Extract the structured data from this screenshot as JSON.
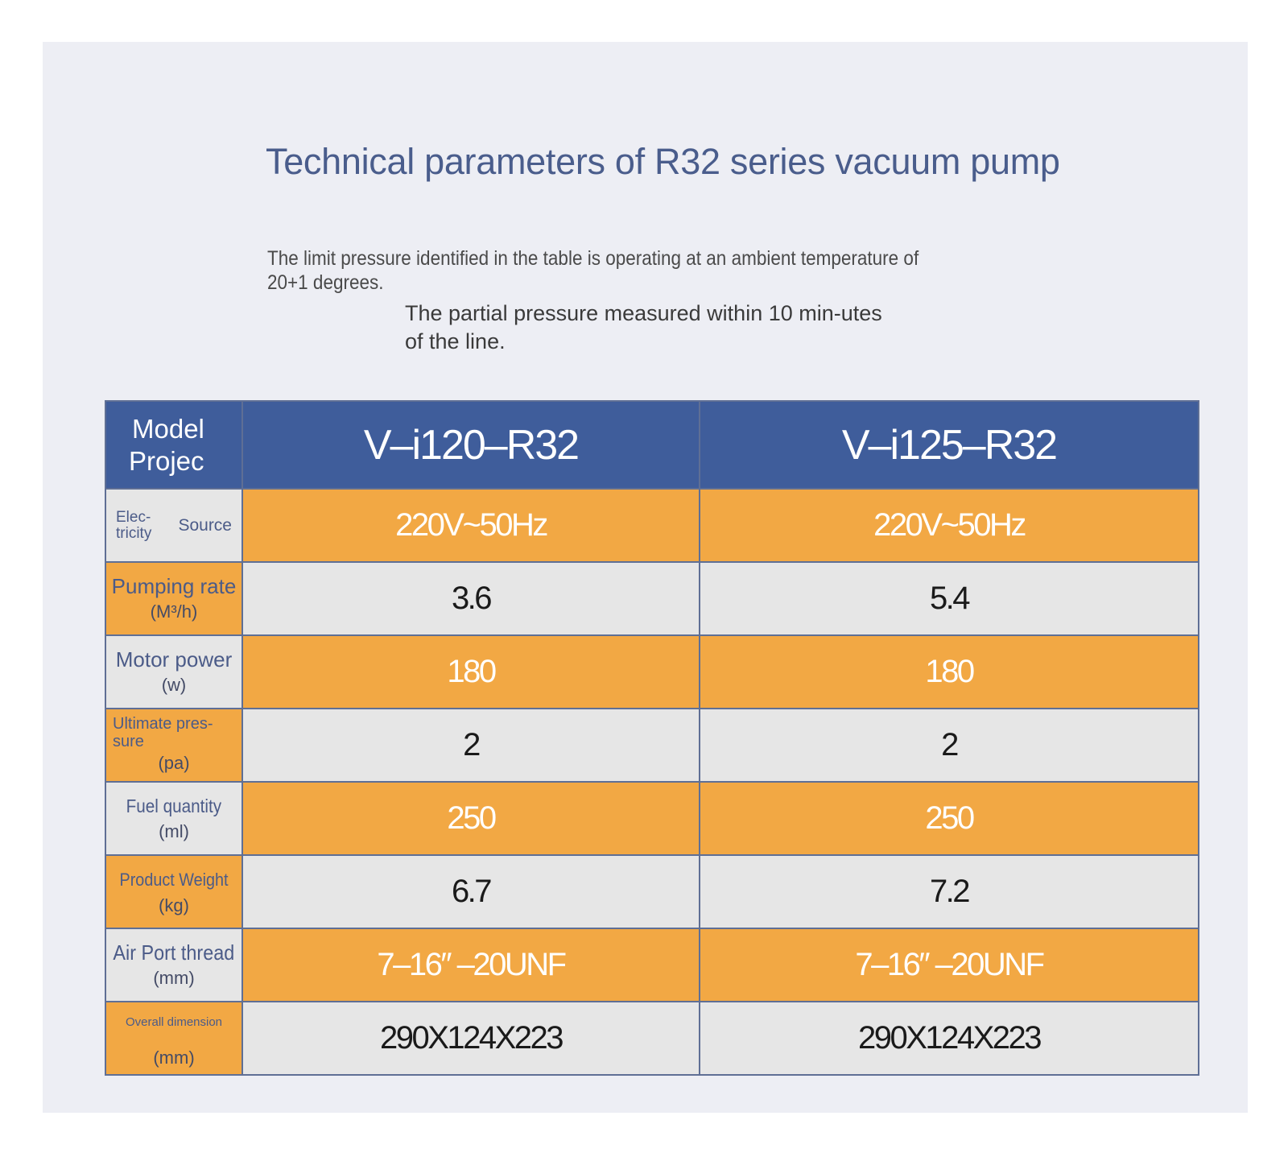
{
  "title": "Technical parameters of R32 series vacuum pump",
  "note_limit_pressure": "The limit pressure identified in the table is operating at an ambient temperature of 20+1 degrees.",
  "note_partial_pressure": "The partial pressure measured within 10 min-utes of the line.",
  "table": {
    "header_label_line1": "Model",
    "header_label_line2": "Projec",
    "models": [
      "V–i120–R32",
      "V–i125–R32"
    ],
    "rows": [
      {
        "label_a": "Elec-tricity",
        "label_b": "Source",
        "unit": "",
        "values": [
          "220V~50Hz",
          "220V~50Hz"
        ],
        "style": "orange-values"
      },
      {
        "label": "Pumping rate",
        "unit": "(M³/h)",
        "values": [
          "3.6",
          "5.4"
        ],
        "style": "orange-label"
      },
      {
        "label": "Motor power",
        "unit": "(w)",
        "values": [
          "180",
          "180"
        ],
        "style": "orange-values"
      },
      {
        "label": "Ultimate pres-sure",
        "unit": "(pa)",
        "values": [
          "2",
          "2"
        ],
        "style": "orange-label"
      },
      {
        "label": "Fuel quantity",
        "unit": "(ml)",
        "values": [
          "250",
          "250"
        ],
        "style": "orange-values"
      },
      {
        "label": "Product Weight",
        "unit": "(kg)",
        "values": [
          "6.7",
          "7.2"
        ],
        "style": "orange-label"
      },
      {
        "label": "Air Port thread",
        "unit": "(mm)",
        "values": [
          "7–16″ –20UNF",
          "7–16″ –20UNF"
        ],
        "style": "orange-values"
      },
      {
        "label": "Overall dimension",
        "unit": "(mm)",
        "values": [
          "290X124X223",
          "290X124X223"
        ],
        "style": "orange-label"
      }
    ]
  },
  "colors": {
    "header_blue": "#3f5d9b",
    "orange": "#f2a844",
    "gray": "#e6e6e6",
    "title_blue": "#4a5d8c"
  }
}
